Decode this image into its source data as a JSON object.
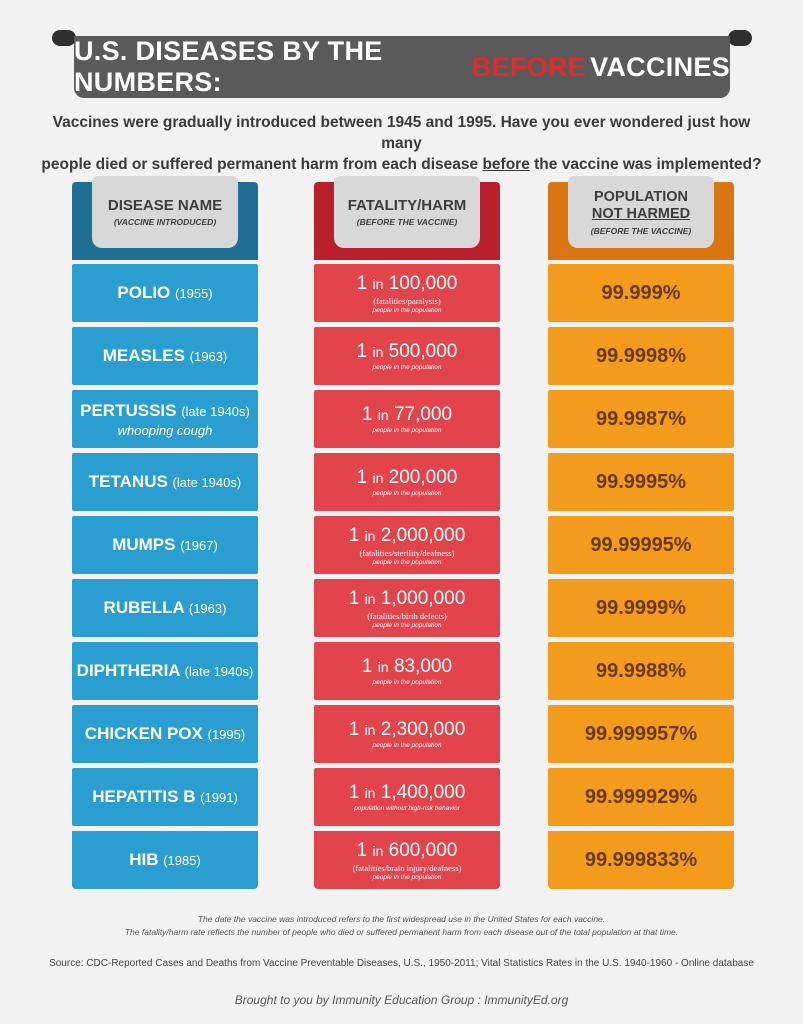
{
  "banner": {
    "part1": "U.S. DISEASES BY THE NUMBERS:",
    "highlight": "BEFORE",
    "part2": "VACCINES",
    "highlight_color": "#e02b2b"
  },
  "intro": {
    "line1": "Vaccines were gradually introduced between 1945 and 1995.  Have you ever wondered just how many",
    "line2a": "people died or suffered permanent harm from each disease",
    "line2b": "before",
    "line2c": "the vaccine was implemented?"
  },
  "headers": {
    "disease": {
      "title": "DISEASE NAME",
      "sub": "(VACCINE INTRODUCED)"
    },
    "fatality": {
      "title": "FATALITY/HARM",
      "sub": "(BEFORE THE VACCINE)"
    },
    "population": {
      "line1": "POPULATION",
      "line2": "NOT HARMED",
      "sub": "(BEFORE THE VACCINE)"
    }
  },
  "rows": [
    {
      "name": "POLIO",
      "year": "(1955)",
      "sub": "",
      "rate_num": "1",
      "rate_in": "in",
      "rate_den": "100,000",
      "note": "(fatalities/paralysis)",
      "pop_note": "people in the population",
      "pct": "99.999%"
    },
    {
      "name": "MEASLES",
      "year": "(1963)",
      "sub": "",
      "rate_num": "1",
      "rate_in": "in",
      "rate_den": "500,000",
      "note": "",
      "pop_note": "people in the population",
      "pct": "99.9998%"
    },
    {
      "name": "PERTUSSIS",
      "year": "(late 1940s)",
      "sub": "whooping cough",
      "rate_num": "1",
      "rate_in": "in",
      "rate_den": "77,000",
      "note": "",
      "pop_note": "people in the population",
      "pct": "99.9987%"
    },
    {
      "name": "TETANUS",
      "year": "(late 1940s)",
      "sub": "",
      "rate_num": "1",
      "rate_in": "in",
      "rate_den": "200,000",
      "note": "",
      "pop_note": "people in the population",
      "pct": "99.9995%"
    },
    {
      "name": "MUMPS",
      "year": "(1967)",
      "sub": "",
      "rate_num": "1",
      "rate_in": "in",
      "rate_den": "2,000,000",
      "note": "(fatalities/sterility/deafness)",
      "pop_note": "people in the population",
      "pct": "99.99995%"
    },
    {
      "name": "RUBELLA",
      "year": "(1963)",
      "sub": "",
      "rate_num": "1",
      "rate_in": "in",
      "rate_den": "1,000,000",
      "note": "(fatalities/birth defects)",
      "pop_note": "people in the population",
      "pct": "99.9999%"
    },
    {
      "name": "DIPHTHERIA",
      "year": "(late 1940s)",
      "sub": "",
      "rate_num": "1",
      "rate_in": "in",
      "rate_den": "83,000",
      "note": "",
      "pop_note": "people in the population",
      "pct": "99.9988%"
    },
    {
      "name": "CHICKEN POX",
      "year": "(1995)",
      "sub": "",
      "rate_num": "1",
      "rate_in": "in",
      "rate_den": "2,300,000",
      "note": "",
      "pop_note": "people in the population",
      "pct": "99.999957%"
    },
    {
      "name": "HEPATITIS B",
      "year": "(1991)",
      "sub": "",
      "rate_num": "1",
      "rate_in": "in",
      "rate_den": "1,400,000",
      "note": "",
      "pop_note": "population without high-risk behavior",
      "pct": "99.999929%"
    },
    {
      "name": "HIB",
      "year": "(1985)",
      "sub": "",
      "rate_num": "1",
      "rate_in": "in",
      "rate_den": "600,000",
      "note": "(fatalities/brain injury/deafness)",
      "pop_note": "people in the population",
      "pct": "99.999833%"
    }
  ],
  "footnotes": {
    "line1": "The date the vaccine was introduced refers to the first widespread use in the United States for each vaccine.",
    "line2": "The fatality/harm rate reflects the number of people who died or suffered permanent harm from each disease out of the total population at that time."
  },
  "source": "Source: CDC-Reported Cases and Deaths from Vaccine Preventable Diseases, U.S., 1950-2011; Vital Statistics Rates in the U.S. 1940-1960 - Online database",
  "brought": "Brought to you by Immunity Education Group : ImmunityEd.org",
  "colors": {
    "disease": "#2a9ed1",
    "fatality": "#e1444b",
    "population": "#f39b1d",
    "banner": "#5a5a5a"
  }
}
